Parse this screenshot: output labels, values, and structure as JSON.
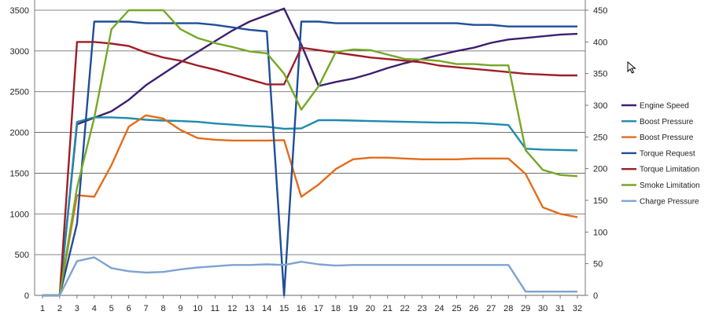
{
  "chart_data": {
    "type": "line",
    "x": [
      1,
      2,
      3,
      4,
      5,
      6,
      7,
      8,
      9,
      10,
      11,
      12,
      13,
      14,
      15,
      16,
      17,
      18,
      19,
      20,
      21,
      22,
      23,
      24,
      25,
      26,
      27,
      28,
      29,
      30,
      31,
      32
    ],
    "x_tick_labels": [
      "1",
      "2",
      "3",
      "4",
      "5",
      "6",
      "7",
      "8",
      "9",
      "10",
      "11",
      "12",
      "13",
      "14",
      "15",
      "16",
      "17",
      "18",
      "19",
      "20",
      "21",
      "22",
      "23",
      "24",
      "25",
      "26",
      "27",
      "28",
      "29",
      "30",
      "31",
      "32"
    ],
    "y_left": {
      "ylim": [
        0,
        3500
      ],
      "ticks": [
        "0",
        "500",
        "1000",
        "1500",
        "2000",
        "2500",
        "3000",
        "3500"
      ]
    },
    "y_right": {
      "ylim": [
        0,
        450
      ],
      "ticks": [
        "0",
        "50",
        "100",
        "150",
        "200",
        "250",
        "300",
        "350",
        "400",
        "450"
      ]
    },
    "grid": "horizontal",
    "legend_position": "right",
    "series": [
      {
        "name": "Engine Speed",
        "axis": "left",
        "color": "#3d1f6e",
        "values": [
          0,
          0,
          2100,
          2180,
          2260,
          2400,
          2580,
          2720,
          2860,
          2990,
          3120,
          3250,
          3360,
          3440,
          3520,
          3080,
          2570,
          2620,
          2660,
          2720,
          2790,
          2850,
          2900,
          2950,
          3000,
          3040,
          3100,
          3140,
          3160,
          3180,
          3200,
          3210
        ]
      },
      {
        "name": "Boost Pressure",
        "axis": "left",
        "color": "#1f8aad",
        "values": [
          0,
          0,
          2130,
          2185,
          2185,
          2175,
          2155,
          2145,
          2140,
          2130,
          2110,
          2095,
          2080,
          2070,
          2045,
          2050,
          2150,
          2150,
          2145,
          2140,
          2135,
          2130,
          2125,
          2120,
          2120,
          2115,
          2105,
          2090,
          1800,
          1790,
          1785,
          1780
        ]
      },
      {
        "name": "Boost Pressure",
        "axis": "left",
        "color": "#e46c1a",
        "values": [
          0,
          0,
          1230,
          1210,
          1600,
          2070,
          2210,
          2170,
          2030,
          1930,
          1910,
          1900,
          1900,
          1900,
          1905,
          1210,
          1360,
          1550,
          1670,
          1690,
          1690,
          1680,
          1670,
          1670,
          1670,
          1680,
          1680,
          1680,
          1490,
          1080,
          1000,
          960
        ]
      },
      {
        "name": "Torque Request",
        "axis": "left",
        "color": "#1f4e9a",
        "values": [
          0,
          0,
          880,
          3360,
          3360,
          3360,
          3340,
          3340,
          3340,
          3340,
          3320,
          3290,
          3260,
          3240,
          0,
          3360,
          3360,
          3340,
          3340,
          3340,
          3340,
          3340,
          3340,
          3340,
          3340,
          3320,
          3320,
          3300,
          3300,
          3300,
          3300,
          3300
        ]
      },
      {
        "name": "Torque Limitation",
        "axis": "left",
        "color": "#a01d26",
        "values": [
          0,
          0,
          3110,
          3110,
          3090,
          3060,
          2980,
          2920,
          2880,
          2820,
          2770,
          2710,
          2650,
          2590,
          2590,
          3040,
          3010,
          2980,
          2950,
          2920,
          2900,
          2880,
          2860,
          2820,
          2800,
          2780,
          2760,
          2740,
          2720,
          2710,
          2700,
          2700
        ]
      },
      {
        "name": "Smoke Limitation",
        "axis": "right",
        "color": "#75a827",
        "values": [
          0,
          0,
          170,
          280,
          420,
          450,
          450,
          450,
          420,
          406,
          398,
          392,
          385,
          382,
          350,
          293,
          330,
          384,
          388,
          387,
          380,
          373,
          372,
          370,
          365,
          365,
          363,
          363,
          229,
          198,
          190,
          188
        ]
      },
      {
        "name": "Charge Pressure",
        "axis": "right",
        "color": "#7ea3d3",
        "values": [
          0,
          0,
          54,
          60,
          43,
          38,
          36,
          37,
          41,
          44,
          46,
          48,
          48,
          49,
          48,
          53,
          49,
          47,
          48,
          48,
          48,
          48,
          48,
          48,
          48,
          48,
          48,
          48,
          6,
          6,
          6,
          6
        ]
      }
    ]
  }
}
